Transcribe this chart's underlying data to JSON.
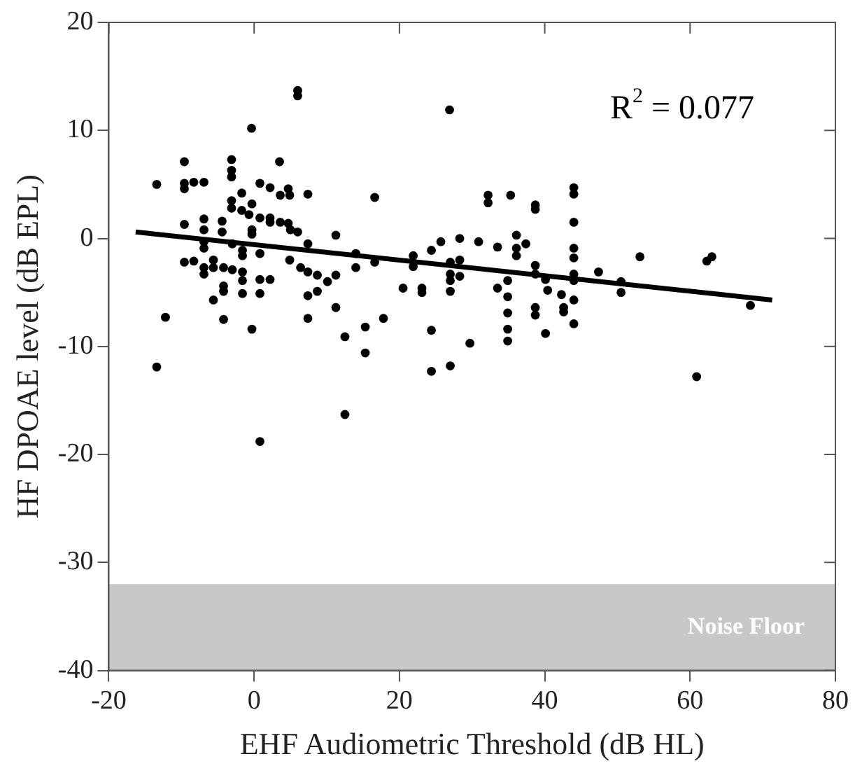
{
  "chart_data": {
    "type": "scatter",
    "xlabel": "EHF Audiometric Threshold (dB HL)",
    "ylabel": "HF DPOAE level (dB EPL)",
    "xlim": [
      -20,
      80
    ],
    "xticks": [
      -20,
      0,
      20,
      40,
      60,
      80
    ],
    "ylim": [
      -40,
      20
    ],
    "yticks": [
      -40,
      -30,
      -20,
      -10,
      0,
      10,
      20
    ],
    "grid": false,
    "legend": false,
    "marker": "circle",
    "annotations": [
      "R$^{2}$ = 0.077"
    ],
    "bands": [
      {
        "axis": "y",
        "from": -40,
        "to": -32,
        "label": "Noise Floor",
        "color": "#c8c8c8"
      }
    ],
    "series": [
      {
        "color": "#000000",
        "x": [
          -0.35,
          -9.6,
          -3.1,
          -3.1,
          -3.1,
          3.5,
          -13.4,
          -9.6,
          -9.6,
          -8.3,
          -6.9,
          -1.7,
          0.8,
          2.2,
          3.6,
          4.7,
          4.9,
          7.4,
          -3.1,
          -3.1,
          -1.7,
          -0.3,
          -0.7,
          0.8,
          2.2,
          2.2,
          3.6,
          4.7,
          6.0,
          5.0,
          -9.6,
          -6.9,
          -4.4,
          -6.9,
          -4.4,
          -0.3,
          -0.3,
          11.25,
          -6.9,
          -6.9,
          -3.0,
          -1.6,
          0.8,
          -1.6,
          7.4,
          -9.6,
          -8.3,
          -6.9,
          -6.9,
          -5.6,
          -5.6,
          -4.2,
          -3.0,
          -1.6,
          -1.6,
          0.8,
          2.2,
          4.9,
          6.4,
          7.4,
          8.7,
          10.1,
          11.25,
          -4.2,
          -4.2,
          -5.6,
          -1.6,
          0.8,
          7.4,
          8.7,
          -12.2,
          -4.2,
          -0.3,
          7.4,
          11.25,
          12.5,
          -13.4,
          12.5,
          0.8,
          6,
          6,
          26.9,
          16.6,
          32.2,
          32.2,
          35.3,
          38.7,
          38.7,
          44,
          44,
          44,
          44,
          44,
          44,
          44,
          44,
          44,
          14.0,
          14.0,
          16.6,
          21.9,
          21.9,
          24.4,
          25.7,
          28.3,
          30.9,
          33.5,
          36.1,
          36.1,
          36.1,
          37.4,
          27.0,
          28.3,
          27.0,
          28.3,
          27.0,
          38.7,
          38.7,
          40.1,
          20.5,
          23.1,
          23.1,
          27.0,
          33.5,
          34.9,
          34.9,
          40.4,
          42.3,
          42.6,
          42.6,
          38.7,
          38.7,
          15.3,
          17.8,
          15.3,
          34.9,
          34.9,
          34.9,
          40.1,
          24.4,
          29.7,
          24.4,
          27.0,
          47.4,
          50.5,
          50.5,
          53.1,
          62.3,
          63.0,
          68.3,
          60.9
        ],
        "values": [
          10.2,
          7.1,
          7.3,
          6.3,
          5.7,
          7.1,
          5.0,
          5.1,
          4.6,
          5.2,
          5.2,
          4.2,
          5.1,
          4.7,
          4.0,
          4.6,
          4.0,
          4.1,
          3.5,
          2.8,
          2.6,
          3.2,
          2.2,
          1.9,
          1.9,
          1.5,
          1.5,
          1.4,
          0.6,
          0.8,
          1.3,
          1.8,
          1.6,
          0.8,
          0.6,
          0.8,
          0.4,
          0.3,
          -0.3,
          -0.9,
          -0.5,
          -1.1,
          -1.4,
          -1.6,
          -0.5,
          -2.2,
          -2.1,
          -2.7,
          -3.3,
          -2.0,
          -2.7,
          -2.7,
          -2.9,
          -3.1,
          -3.9,
          -3.8,
          -3.8,
          -2.0,
          -2.7,
          -3.1,
          -3.4,
          -4.0,
          -3.4,
          -4.4,
          -4.9,
          -5.7,
          -5.1,
          -5.1,
          -5.3,
          -4.9,
          -7.3,
          -7.5,
          -8.4,
          -7.4,
          -6.4,
          -9.1,
          -11.9,
          -16.3,
          -18.8,
          13.7,
          13.2,
          11.9,
          3.8,
          4.0,
          3.3,
          4.0,
          3.1,
          2.7,
          4.7,
          4.1,
          1.5,
          -0.9,
          -1.8,
          -3.3,
          -3.9,
          -5.7,
          -7.9,
          -1.4,
          -2.7,
          -2.2,
          -1.6,
          -2.6,
          -1.1,
          -0.3,
          0.0,
          -0.3,
          -0.8,
          0.3,
          -0.9,
          -1.6,
          -0.5,
          -2.2,
          -2.0,
          -3.3,
          -3.5,
          -3.9,
          -2.5,
          -3.3,
          -3.8,
          -4.6,
          -4.6,
          -5.0,
          -4.9,
          -4.6,
          -3.9,
          -5.4,
          -4.8,
          -5.2,
          -6.4,
          -6.8,
          -6.4,
          -7.1,
          -8.2,
          -7.4,
          -10.6,
          -6.9,
          -8.4,
          -9.5,
          -8.8,
          -8.5,
          -9.7,
          -12.3,
          -11.8,
          -3.1,
          -4.0,
          -5.0,
          -1.7,
          -2.1,
          -1.7,
          -6.2,
          -12.8
        ]
      },
      {
        "type": "line",
        "color": "#000000",
        "marker": "none",
        "x": [
          -16.3,
          71.3
        ],
        "values": [
          0.6,
          -5.7
        ]
      }
    ]
  }
}
